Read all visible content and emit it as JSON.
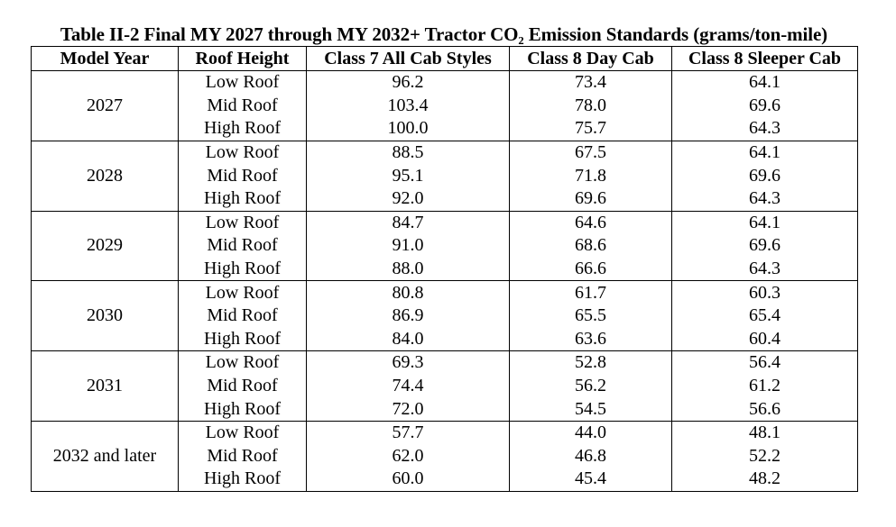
{
  "title": "Table II-2 Final MY 2027 through MY 2032+ Tractor CO₂ Emission Standards (grams/ton-mile)",
  "headers": [
    "Model Year",
    "Roof Height",
    "Class 7 All Cab Styles",
    "Class 8 Day Cab",
    "Class 8 Sleeper Cab"
  ],
  "groups": [
    {
      "year": "2027",
      "rows": [
        {
          "roof": "Low Roof",
          "c7": "96.2",
          "c8day": "73.4",
          "c8sleeper": "64.1"
        },
        {
          "roof": "Mid Roof",
          "c7": "103.4",
          "c8day": "78.0",
          "c8sleeper": "69.6"
        },
        {
          "roof": "High Roof",
          "c7": "100.0",
          "c8day": "75.7",
          "c8sleeper": "64.3"
        }
      ]
    },
    {
      "year": "2028",
      "rows": [
        {
          "roof": "Low Roof",
          "c7": "88.5",
          "c8day": "67.5",
          "c8sleeper": "64.1"
        },
        {
          "roof": "Mid Roof",
          "c7": "95.1",
          "c8day": "71.8",
          "c8sleeper": "69.6"
        },
        {
          "roof": "High Roof",
          "c7": "92.0",
          "c8day": "69.6",
          "c8sleeper": "64.3"
        }
      ]
    },
    {
      "year": "2029",
      "rows": [
        {
          "roof": "Low Roof",
          "c7": "84.7",
          "c8day": "64.6",
          "c8sleeper": "64.1"
        },
        {
          "roof": "Mid Roof",
          "c7": "91.0",
          "c8day": "68.6",
          "c8sleeper": "69.6"
        },
        {
          "roof": "High Roof",
          "c7": "88.0",
          "c8day": "66.6",
          "c8sleeper": "64.3"
        }
      ]
    },
    {
      "year": "2030",
      "rows": [
        {
          "roof": "Low Roof",
          "c7": "80.8",
          "c8day": "61.7",
          "c8sleeper": "60.3"
        },
        {
          "roof": "Mid Roof",
          "c7": "86.9",
          "c8day": "65.5",
          "c8sleeper": "65.4"
        },
        {
          "roof": "High Roof",
          "c7": "84.0",
          "c8day": "63.6",
          "c8sleeper": "60.4"
        }
      ]
    },
    {
      "year": "2031",
      "rows": [
        {
          "roof": "Low Roof",
          "c7": "69.3",
          "c8day": "52.8",
          "c8sleeper": "56.4"
        },
        {
          "roof": "Mid Roof",
          "c7": "74.4",
          "c8day": "56.2",
          "c8sleeper": "61.2"
        },
        {
          "roof": "High Roof",
          "c7": "72.0",
          "c8day": "54.5",
          "c8sleeper": "56.6"
        }
      ]
    },
    {
      "year": "2032 and later",
      "rows": [
        {
          "roof": "Low Roof",
          "c7": "57.7",
          "c8day": "44.0",
          "c8sleeper": "48.1"
        },
        {
          "roof": "Mid Roof",
          "c7": "62.0",
          "c8day": "46.8",
          "c8sleeper": "52.2"
        },
        {
          "roof": "High Roof",
          "c7": "60.0",
          "c8day": "45.4",
          "c8sleeper": "48.2"
        }
      ]
    }
  ]
}
